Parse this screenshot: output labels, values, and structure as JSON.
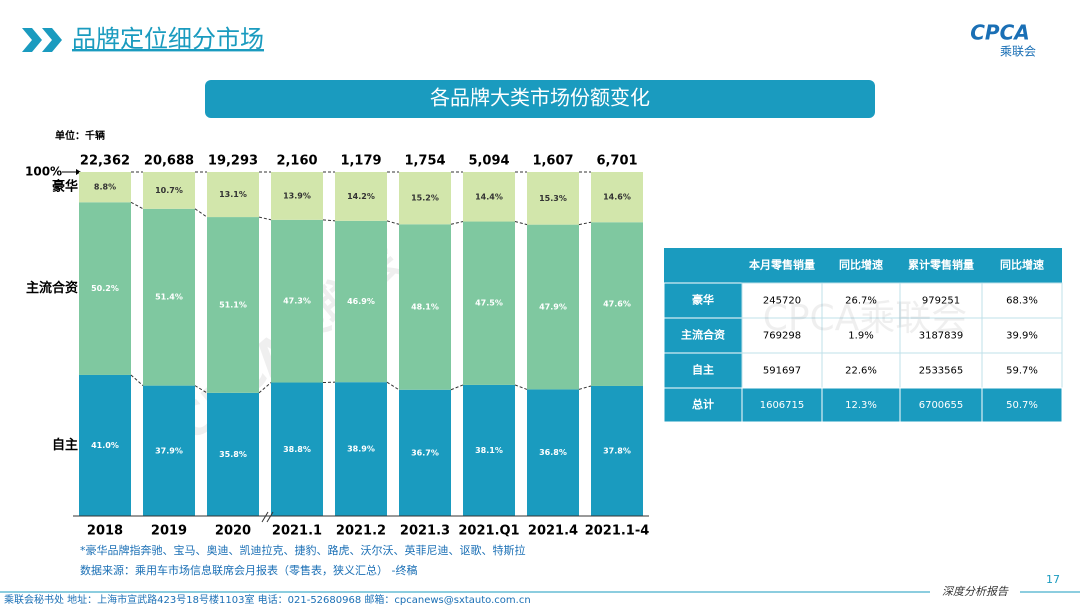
{
  "header": {
    "title": "品牌定位细分市场",
    "logo": "CPCA",
    "logo_sub": "乘联会"
  },
  "banner": "各品牌大类市场份额变化",
  "unit": "单位：千辆",
  "watermark": "CPCA乘联会",
  "chart_data": {
    "type": "stacked-bar",
    "categories": [
      "2018",
      "2019",
      "2020",
      "2021.1",
      "2021.2",
      "2021.3",
      "2021.Q1",
      "2021.4",
      "2021.1-4"
    ],
    "totals": {
      "values": [
        22362,
        20688,
        19293,
        2160,
        1179,
        1754,
        5094,
        1607,
        6701
      ],
      "value_labels": [
        "22,362",
        "20,688",
        "19,293",
        "2,160",
        "1,179",
        "1,754",
        "5,094",
        "1,607",
        "6,701"
      ]
    },
    "series": [
      {
        "name": "自主",
        "color": "#1a9bbf",
        "values": [
          41.0,
          37.9,
          35.8,
          38.8,
          38.9,
          36.7,
          38.1,
          36.8,
          37.8
        ],
        "value_labels": [
          "41.0%",
          "37.9%",
          "35.8%",
          "38.8%",
          "38.9%",
          "36.7%",
          "38.1%",
          "36.8%",
          "37.8%"
        ]
      },
      {
        "name": "主流合资",
        "color": "#7fc8a0",
        "values": [
          50.2,
          51.4,
          51.1,
          47.3,
          46.9,
          48.1,
          47.5,
          47.9,
          47.6
        ],
        "value_labels": [
          "50.2%",
          "51.4%",
          "51.1%",
          "47.3%",
          "46.9%",
          "48.1%",
          "47.5%",
          "47.9%",
          "47.6%"
        ]
      },
      {
        "name": "豪华",
        "color": "#d2e6ab",
        "values": [
          8.8,
          10.7,
          13.1,
          13.9,
          14.2,
          15.2,
          14.4,
          15.3,
          14.6
        ],
        "value_labels": [
          "8.8%",
          "10.7%",
          "13.1%",
          "13.9%",
          "14.2%",
          "15.2%",
          "14.4%",
          "15.3%",
          "14.6%"
        ]
      }
    ],
    "ylim": [
      0,
      100
    ],
    "yticks": [
      {
        "value": 100,
        "label": "100%"
      }
    ]
  },
  "table": {
    "columns": [
      "本月零售销量",
      "同比增速",
      "累计零售销量",
      "同比增速"
    ],
    "rows": [
      {
        "label": "豪华",
        "cells": [
          "245720",
          "26.7%",
          "979251",
          "68.3%"
        ]
      },
      {
        "label": "主流合资",
        "cells": [
          "769298",
          "1.9%",
          "3187839",
          "39.9%"
        ]
      },
      {
        "label": "自主",
        "cells": [
          "591697",
          "22.6%",
          "2533565",
          "59.7%"
        ]
      },
      {
        "label": "总计",
        "cells": [
          "1606715",
          "12.3%",
          "6700655",
          "50.7%"
        ]
      }
    ]
  },
  "footnotes": [
    "*豪华品牌指奔驰、宝马、奥迪、凯迪拉克、捷豹、路虎、沃尔沃、英菲尼迪、讴歌、特斯拉",
    "数据来源：乘用车市场信息联席会月报表（零售表，狭义汇总） -终稿"
  ],
  "footer": {
    "contact": "乘联会秘书处   地址：上海市宣武路423号18号楼1103室   电话：021-52680968   邮箱：cpcanews@sxtauto.com.cn",
    "report": "深度分析报告",
    "page": "17"
  }
}
